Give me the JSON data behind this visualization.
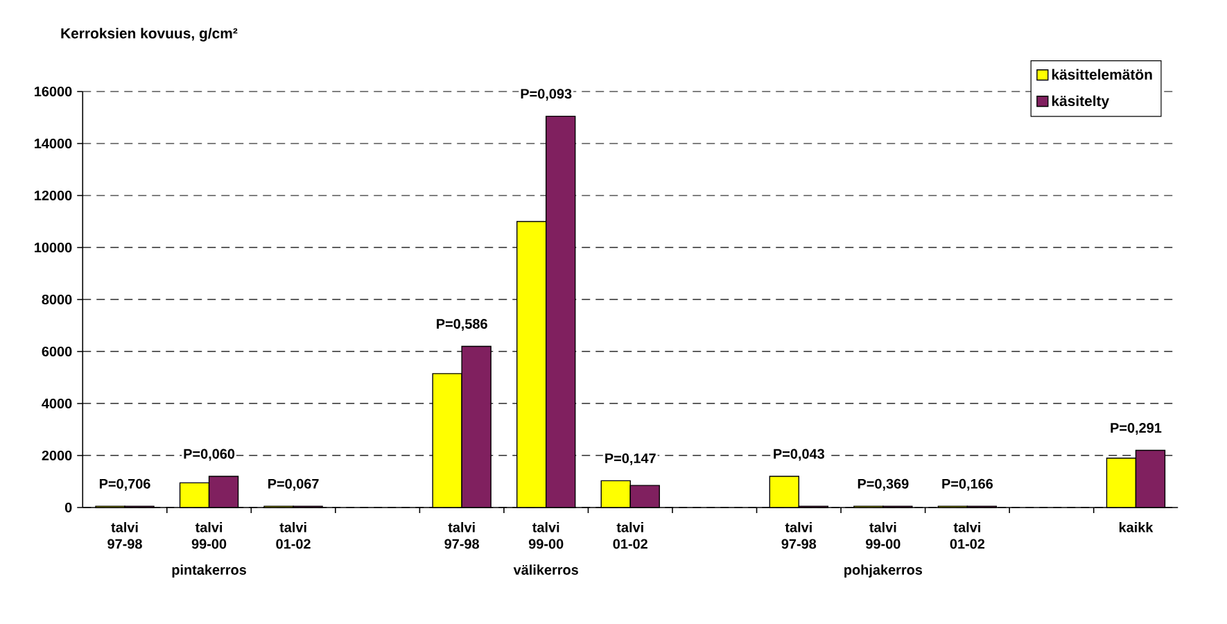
{
  "chart_data": {
    "type": "bar",
    "title": "Kerroksien kovuus, g/cm²",
    "categories": [
      "talvi 97-98",
      "talvi 99-00",
      "talvi 01-02",
      null,
      "talvi 97-98",
      "talvi 99-00",
      "talvi 01-02",
      null,
      "talvi 97-98",
      "talvi 99-00",
      "talvi 01-02",
      null,
      "kaikk"
    ],
    "series": [
      {
        "name": "käsittelemätön",
        "color": "#ffff00",
        "values": [
          50,
          950,
          50,
          null,
          5150,
          11000,
          1030,
          null,
          1200,
          50,
          50,
          null,
          1900
        ]
      },
      {
        "name": "käsitelty",
        "color": "#80205f",
        "values": [
          50,
          1200,
          50,
          null,
          6200,
          15050,
          850,
          null,
          50,
          50,
          50,
          null,
          2200
        ]
      }
    ],
    "ylim": [
      0,
      16000
    ],
    "yticks": [
      0,
      2000,
      4000,
      6000,
      8000,
      10000,
      12000,
      14000,
      16000
    ],
    "grid": "y",
    "legend": "top right",
    "annotations": [
      "P=0,706",
      "P=0,060",
      "P=0,067",
      "P=0,586",
      "P=0,093",
      "P=0,147",
      "P=0,043",
      "P=0,369",
      "P=0,166",
      "P=0,291",
      "pintakerros",
      "välikerros",
      "pohjakerros"
    ]
  }
}
